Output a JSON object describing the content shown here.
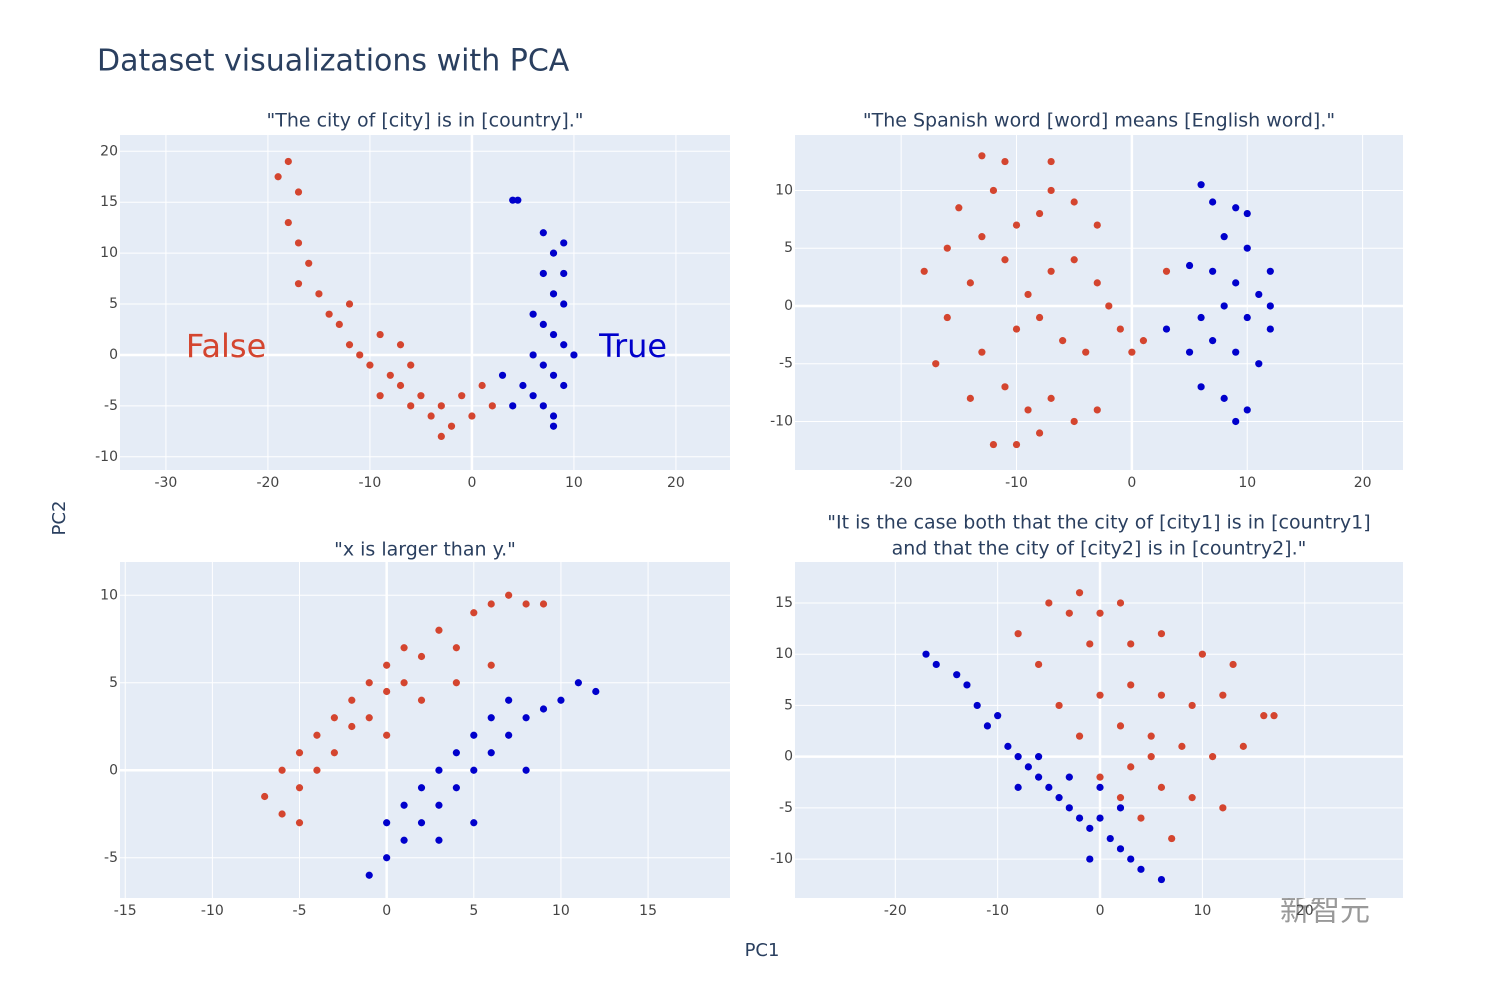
{
  "title": "Dataset visualizations with PCA",
  "x_label": "PC1",
  "y_label": "PC2",
  "watermark": "新智元",
  "chart_data": [
    {
      "type": "scatter",
      "title": [
        "\"The city of [city] is in [country].\""
      ],
      "xlim": [
        -34.5,
        25.3
      ],
      "ylim": [
        -11.3,
        21.6
      ],
      "xticks": [
        -30,
        -20,
        -10,
        0,
        10,
        20
      ],
      "yticks": [
        -10,
        -5,
        0,
        5,
        10,
        15,
        20
      ],
      "grid": true,
      "annotations": [
        {
          "text": "False",
          "x": -24.1,
          "y": 0.7,
          "color": "#d4452f"
        },
        {
          "text": "True",
          "x": 15.8,
          "y": 0.7,
          "color": "#0000cc"
        }
      ],
      "series": [
        {
          "color": "#d4452f",
          "x": [
            -19,
            -18,
            -17,
            -18,
            -17,
            -16,
            -17,
            -15,
            -14,
            -13,
            -12,
            -11,
            -10,
            -9,
            -8,
            -7,
            -6,
            -5,
            -4,
            -3,
            -2,
            -1,
            0,
            1,
            2,
            -6,
            -9,
            -3,
            -12,
            -7
          ],
          "y": [
            17.5,
            19,
            16,
            13,
            11,
            9,
            7,
            6,
            4,
            3,
            1,
            0,
            -1,
            2,
            -2,
            -3,
            -5,
            -4,
            -6,
            -5,
            -7,
            -4,
            -6,
            -3,
            -5,
            -1,
            -4,
            -8,
            5,
            1
          ]
        },
        {
          "color": "#0000cc",
          "x": [
            4,
            4.5,
            7,
            8,
            9,
            7,
            8,
            9,
            6,
            7,
            8,
            9,
            6,
            7,
            8,
            9,
            5,
            6,
            7,
            8,
            8,
            4,
            3,
            10,
            9
          ],
          "y": [
            15.2,
            15.2,
            12,
            10,
            11,
            8,
            6,
            5,
            4,
            3,
            2,
            1,
            0,
            -1,
            -2,
            -3,
            -3,
            -4,
            -5,
            -6,
            -7,
            -5,
            -2,
            0,
            8
          ]
        }
      ]
    },
    {
      "type": "scatter",
      "title": [
        "\"The Spanish word [word] means [English word].\""
      ],
      "xlim": [
        -29.2,
        23.5
      ],
      "ylim": [
        -14.2,
        14.8
      ],
      "xticks": [
        -20,
        -10,
        0,
        10,
        20
      ],
      "yticks": [
        -10,
        -5,
        0,
        5,
        10
      ],
      "grid": true,
      "series": [
        {
          "color": "#d4452f",
          "x": [
            -13,
            -11,
            -7,
            -15,
            -12,
            -7,
            -16,
            -13,
            -10,
            -8,
            -5,
            -3,
            -18,
            -14,
            -11,
            -9,
            -7,
            -5,
            -3,
            -16,
            -13,
            -10,
            -8,
            -6,
            -4,
            -2,
            -17,
            -14,
            -11,
            -9,
            -7,
            -5,
            -3,
            -12,
            -10,
            -8,
            0,
            1,
            -1,
            3
          ],
          "y": [
            13,
            12.5,
            12.5,
            8.5,
            10,
            10,
            5,
            6,
            7,
            8,
            9,
            7,
            3,
            2,
            4,
            1,
            3,
            4,
            2,
            -1,
            -4,
            -2,
            -1,
            -3,
            -4,
            0,
            -5,
            -8,
            -7,
            -9,
            -8,
            -10,
            -9,
            -12,
            -12,
            -11,
            -4,
            -3,
            -2,
            3
          ]
        },
        {
          "color": "#0000cc",
          "x": [
            6,
            7,
            9,
            10,
            8,
            10,
            12,
            5,
            7,
            9,
            11,
            12,
            6,
            8,
            10,
            12,
            3,
            5,
            7,
            9,
            11,
            6,
            8,
            10,
            9
          ],
          "y": [
            10.5,
            9,
            8.5,
            8,
            6,
            5,
            3,
            3.5,
            3,
            2,
            1,
            0,
            -1,
            0,
            -1,
            -2,
            -2,
            -4,
            -3,
            -4,
            -5,
            -7,
            -8,
            -9,
            -10
          ]
        }
      ]
    },
    {
      "type": "scatter",
      "title": [
        "\"x is larger than y.\""
      ],
      "xlim": [
        -15.3,
        19.7
      ],
      "ylim": [
        -7.3,
        11.9
      ],
      "xticks": [
        -15,
        -10,
        -5,
        0,
        5,
        10,
        15
      ],
      "yticks": [
        -5,
        0,
        5,
        10
      ],
      "grid": true,
      "series": [
        {
          "color": "#d4452f",
          "x": [
            -7,
            -6,
            -6,
            -5,
            -5,
            -4,
            -4,
            -3,
            -3,
            -2,
            -2,
            -1,
            -1,
            0,
            0,
            1,
            1,
            2,
            3,
            4,
            5,
            6,
            7,
            8,
            9,
            6,
            4,
            -5,
            2,
            0
          ],
          "y": [
            -1.5,
            -2.5,
            0,
            -1,
            1,
            0,
            2,
            1,
            3,
            2.5,
            4,
            3,
            5,
            4.5,
            6,
            5,
            7,
            6.5,
            8,
            7,
            9,
            9.5,
            10,
            9.5,
            9.5,
            6,
            5,
            -3,
            4,
            2
          ]
        },
        {
          "color": "#0000cc",
          "x": [
            -1,
            0,
            0,
            1,
            1,
            2,
            2,
            3,
            3,
            4,
            4,
            5,
            5,
            6,
            6,
            7,
            7,
            8,
            9,
            10,
            11,
            12,
            8,
            3,
            5
          ],
          "y": [
            -6,
            -5,
            -3,
            -4,
            -2,
            -3,
            -1,
            -2,
            0,
            -1,
            1,
            0,
            2,
            1,
            3,
            2,
            4,
            3,
            3.5,
            4,
            5,
            4.5,
            0,
            -4,
            -3
          ]
        }
      ]
    },
    {
      "type": "scatter",
      "title": [
        "\"It is the case both that the city of [city1] is in [country1]",
        "and that the city of [city2] is in [country2].\""
      ],
      "xlim": [
        -29.8,
        29.6
      ],
      "ylim": [
        -13.8,
        19
      ],
      "xticks": [
        -20,
        -10,
        0,
        10,
        20
      ],
      "yticks": [
        -10,
        -5,
        0,
        5,
        10,
        15
      ],
      "grid": true,
      "series": [
        {
          "color": "#d4452f",
          "x": [
            -8,
            -5,
            -3,
            -2,
            0,
            2,
            -6,
            -1,
            3,
            6,
            10,
            13,
            -4,
            0,
            3,
            6,
            9,
            12,
            16,
            17,
            -2,
            2,
            5,
            8,
            11,
            14,
            0,
            3,
            6,
            9,
            12,
            4,
            7,
            5,
            2
          ],
          "y": [
            12,
            15,
            14,
            16,
            14,
            15,
            9,
            11,
            11,
            12,
            10,
            9,
            5,
            6,
            7,
            6,
            5,
            6,
            4,
            4,
            2,
            3,
            2,
            1,
            0,
            1,
            -2,
            -1,
            -3,
            -4,
            -5,
            -6,
            -8,
            0,
            -4
          ]
        },
        {
          "color": "#0000cc",
          "x": [
            -17,
            -16,
            -14,
            -13,
            -12,
            -11,
            -10,
            -9,
            -8,
            -7,
            -6,
            -5,
            -4,
            -3,
            -2,
            -1,
            0,
            1,
            2,
            3,
            4,
            6,
            -6,
            -3,
            0,
            2,
            -8,
            -1
          ],
          "y": [
            10,
            9,
            8,
            7,
            5,
            3,
            4,
            1,
            0,
            -1,
            -2,
            -3,
            -4,
            -5,
            -6,
            -7,
            -6,
            -8,
            -9,
            -10,
            -11,
            -12,
            0,
            -2,
            -3,
            -5,
            -3,
            -10
          ]
        }
      ]
    }
  ]
}
